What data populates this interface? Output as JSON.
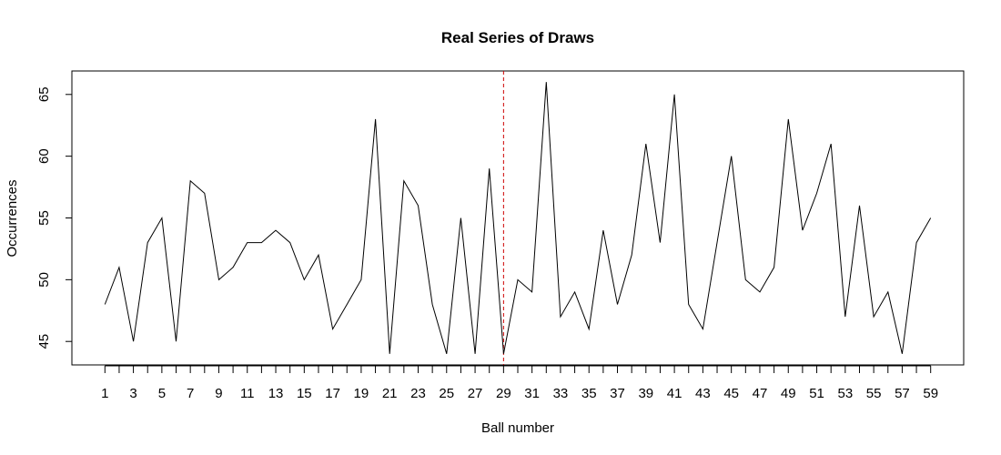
{
  "chart_data": {
    "type": "line",
    "title": "Real Series of Draws",
    "xlabel": "Ball number",
    "ylabel": "Occurrences",
    "x": [
      1,
      2,
      3,
      4,
      5,
      6,
      7,
      8,
      9,
      10,
      11,
      12,
      13,
      14,
      15,
      16,
      17,
      18,
      19,
      20,
      21,
      22,
      23,
      24,
      25,
      26,
      27,
      28,
      29,
      30,
      31,
      32,
      33,
      34,
      35,
      36,
      37,
      38,
      39,
      40,
      41,
      42,
      43,
      44,
      45,
      46,
      47,
      48,
      49,
      50,
      51,
      52,
      53,
      54,
      55,
      56,
      57,
      58,
      59
    ],
    "series": [
      {
        "values": [
          48,
          51,
          45,
          53,
          55,
          45,
          58,
          57,
          50,
          51,
          53,
          53,
          54,
          53,
          50,
          52,
          46,
          48,
          50,
          63,
          44,
          58,
          56,
          48,
          44,
          55,
          44,
          59,
          44,
          50,
          49,
          66,
          47,
          49,
          46,
          54,
          48,
          52,
          61,
          53,
          65,
          48,
          46,
          53,
          60,
          50,
          49,
          51,
          63,
          54,
          57,
          61,
          47,
          56,
          47,
          49,
          44,
          53,
          55
        ],
        "color": "#000000"
      }
    ],
    "xlim": [
      -1.32,
      61.32
    ],
    "ylim": [
      43.1,
      66.9
    ],
    "x_tick_labels": [
      "1",
      "3",
      "5",
      "7",
      "9",
      "11",
      "13",
      "15",
      "17",
      "19",
      "21",
      "23",
      "25",
      "27",
      "29",
      "31",
      "33",
      "35",
      "37",
      "39",
      "41",
      "43",
      "45",
      "47",
      "49",
      "51",
      "53",
      "55",
      "57",
      "59"
    ],
    "y_ticks": [
      45,
      50,
      55,
      60,
      65
    ],
    "y_tick_labels": [
      "45",
      "50",
      "55",
      "60",
      "65"
    ],
    "reference_line": {
      "x": 29,
      "color": "#cc0000",
      "style": "dashed"
    },
    "grid": false,
    "legend": "none"
  }
}
